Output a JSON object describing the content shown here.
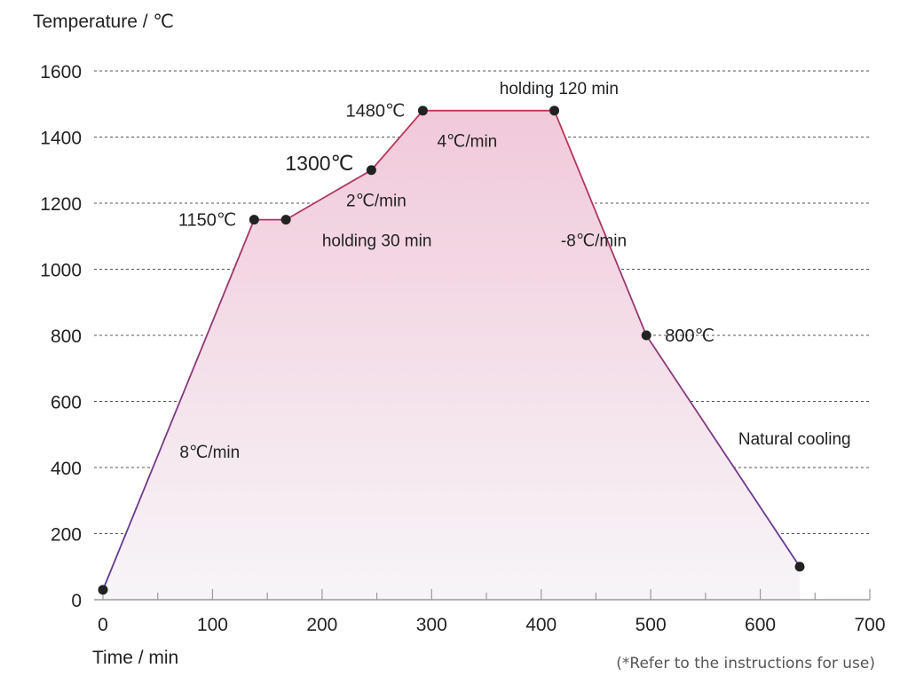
{
  "chart_data": {
    "type": "line",
    "ylabel": "Temperature / ℃",
    "xlabel": "Time / min",
    "xlim": [
      0,
      700
    ],
    "ylim": [
      0,
      1600
    ],
    "x_ticks": [
      "0",
      "100",
      "200",
      "300",
      "400",
      "500",
      "600",
      "700"
    ],
    "y_ticks": [
      "0",
      "200",
      "400",
      "600",
      "800",
      "1000",
      "1200",
      "1400",
      "1600"
    ],
    "grid": "horizontal dashed",
    "x": [
      0,
      138,
      167,
      245,
      292,
      412,
      496,
      636
    ],
    "y": [
      30,
      1150,
      1150,
      1300,
      1480,
      1480,
      800,
      100
    ],
    "point_labels": [
      "",
      "1150℃",
      "",
      "1300℃",
      "1480℃",
      "",
      "800℃",
      ""
    ],
    "segment_annotations": [
      {
        "text": "8℃/min",
        "x": 70,
        "y": 430
      },
      {
        "text": "holding 30 min",
        "x": 200,
        "y": 1070
      },
      {
        "text": "2℃/min",
        "x": 222,
        "y": 1190
      },
      {
        "text": "4℃/min",
        "x": 305,
        "y": 1370
      },
      {
        "text": "holding 120 min",
        "x": 362,
        "y": 1530
      },
      {
        "text": "-8℃/min",
        "x": 418,
        "y": 1070
      },
      {
        "text": "Natural cooling",
        "x": 580,
        "y": 470
      }
    ],
    "colors": {
      "line_top": "#c8364f",
      "line_bottom": "#5a3a9a",
      "fill_top": "#f1c9da",
      "fill_bottom": "#f7f5f8",
      "marker": "#222222",
      "grid": "#555555"
    }
  },
  "footnote": "(*Refer to the instructions for use)"
}
